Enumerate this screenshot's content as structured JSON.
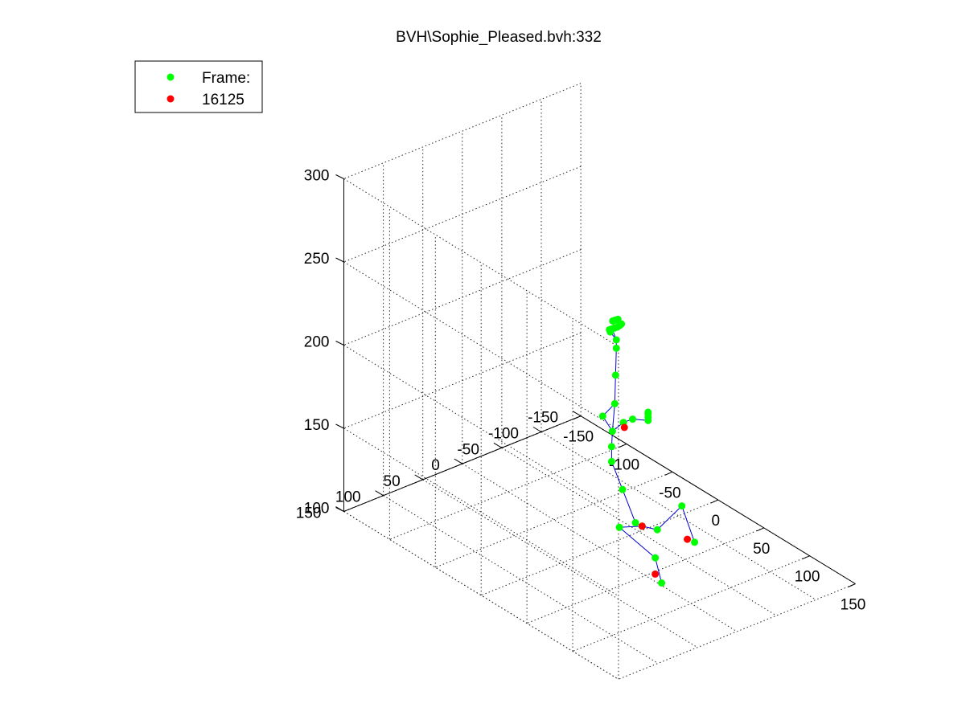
{
  "chart_data": {
    "type": "scatter",
    "title": "BVH\\Sophie_Pleased.bvh:332",
    "xlabel": "",
    "ylabel": "",
    "zlabel": "",
    "grid": true,
    "legend_location": "top-left",
    "axes": {
      "x": {
        "range": [
          -150,
          150
        ],
        "ticks": [
          -150,
          -100,
          -50,
          0,
          50,
          100,
          150
        ],
        "tick_labels": [
          "-150",
          "-100",
          "-50",
          "0",
          "50",
          "100",
          "150"
        ]
      },
      "y": {
        "range": [
          -150,
          150
        ],
        "ticks": [
          -150,
          -100,
          -50,
          0,
          50,
          100,
          150
        ],
        "tick_labels": [
          "-150",
          "-100",
          "-50",
          "0",
          "50",
          "100",
          "150"
        ]
      },
      "z": {
        "range": [
          100,
          300
        ],
        "ticks": [
          100,
          150,
          200,
          250,
          300
        ],
        "tick_labels": [
          "100",
          "150",
          "200",
          "250",
          "300"
        ]
      }
    },
    "legend": [
      {
        "label": "Frame:",
        "color": "#00ff00"
      },
      {
        "label": "16125",
        "color": "#ff0000"
      }
    ],
    "series": [
      {
        "name": "Frame:",
        "color": "#00ff00",
        "points": [
          {
            "x": 21,
            "y": -21,
            "z": 118
          },
          {
            "x": 19,
            "y": -7,
            "z": 140
          },
          {
            "x": 20,
            "y": 8,
            "z": 160
          },
          {
            "x": 20,
            "y": 8,
            "z": 169
          },
          {
            "x": 20,
            "y": 7,
            "z": 178
          },
          {
            "x": 20,
            "y": 4,
            "z": 194
          },
          {
            "x": 20,
            "y": 3,
            "z": 211
          },
          {
            "x": 20,
            "y": 2,
            "z": 227
          },
          {
            "x": 20,
            "y": 2,
            "z": 232
          },
          {
            "x": 15,
            "y": 5,
            "z": 237
          },
          {
            "x": 17,
            "y": 4,
            "z": 238
          },
          {
            "x": 19,
            "y": 3,
            "z": 239
          },
          {
            "x": 21,
            "y": 2,
            "z": 240
          },
          {
            "x": 22,
            "y": 0,
            "z": 241
          },
          {
            "x": 16,
            "y": 2,
            "z": 242
          },
          {
            "x": 18,
            "y": 1,
            "z": 243
          },
          {
            "x": 20,
            "y": 0,
            "z": 244
          },
          {
            "x": 23,
            "y": -1,
            "z": 242
          },
          {
            "x": 16,
            "y": 5,
            "z": 236
          },
          {
            "x": 12,
            "y": 10,
            "z": 185
          },
          {
            "x": 26,
            "y": 0,
            "z": 184
          },
          {
            "x": 30,
            "y": -7,
            "z": 186
          },
          {
            "x": 40,
            "y": -15,
            "z": 187
          },
          {
            "x": 40,
            "y": -15,
            "z": 189
          },
          {
            "x": 40,
            "y": -15,
            "z": 191
          },
          {
            "x": 40,
            "y": -15,
            "z": 192
          },
          {
            "x": 24,
            "y": -26,
            "z": 116
          },
          {
            "x": 19,
            "y": -3,
            "z": 118
          },
          {
            "x": 38,
            "y": -29,
            "z": 118
          },
          {
            "x": 28,
            "y": -38,
            "z": 96
          },
          {
            "x": 32,
            "y": -67,
            "z": 123
          },
          {
            "x": 39,
            "y": -75,
            "z": 102
          },
          {
            "x": 22,
            "y": -53,
            "z": 76
          }
        ]
      },
      {
        "name": "16125",
        "color": "#ff0000",
        "points": [
          {
            "x": 21,
            "y": -7,
            "z": 178
          },
          {
            "x": 24,
            "y": -26,
            "z": 116
          },
          {
            "x": 38,
            "y": -67,
            "z": 105
          },
          {
            "x": 15,
            "y": -53,
            "z": 79
          }
        ]
      }
    ],
    "skeleton_color": "#0000cc"
  }
}
